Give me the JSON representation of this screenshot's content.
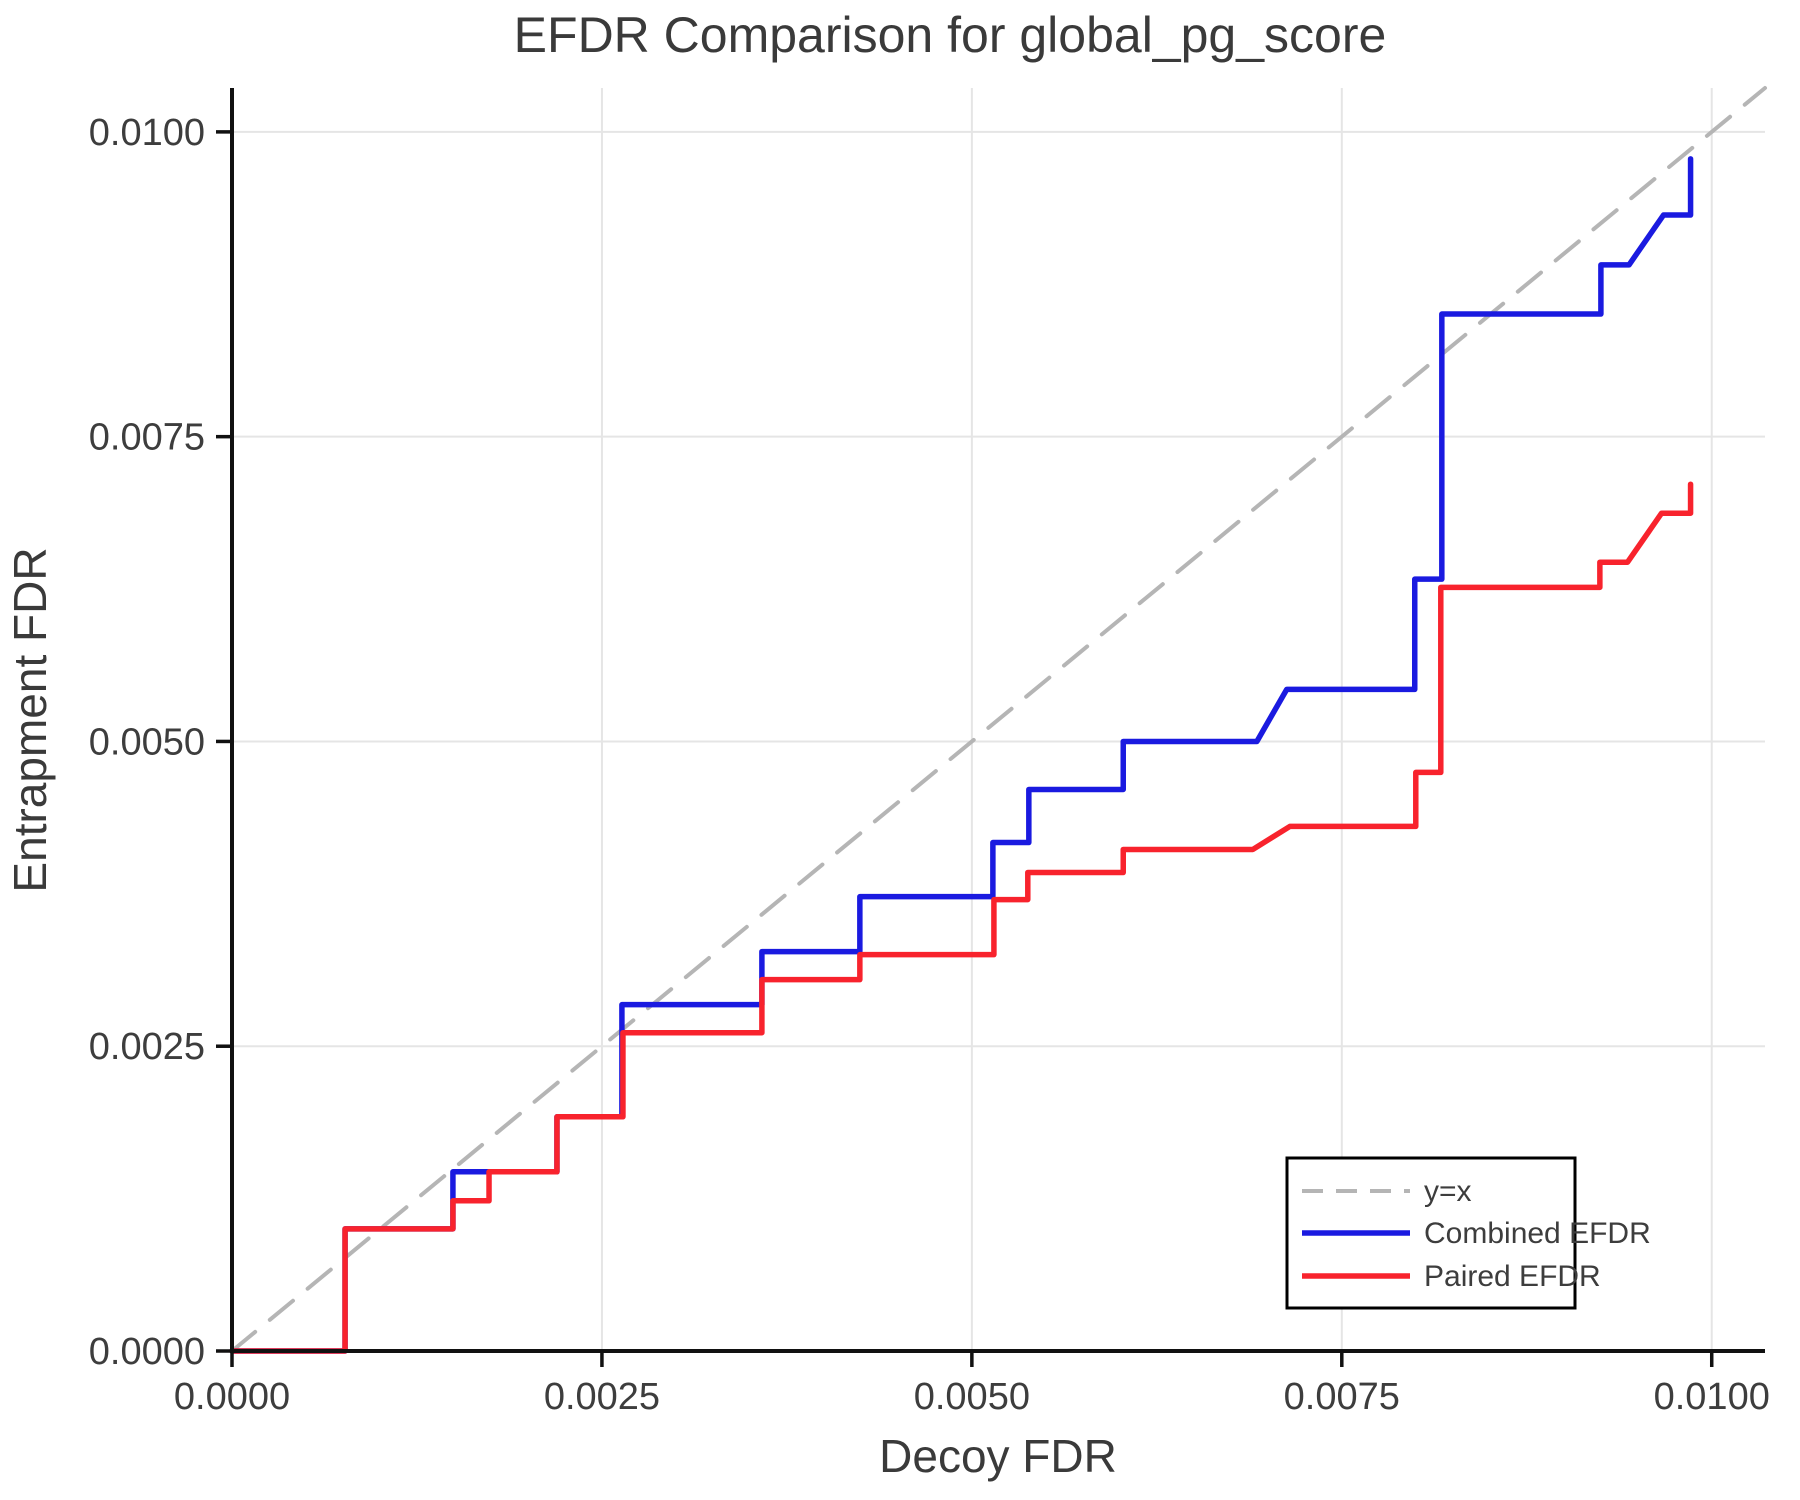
{
  "chart_data": {
    "type": "line",
    "title": "EFDR Comparison for global_pg_score",
    "xlabel": "Decoy FDR",
    "ylabel": "Entrapment FDR",
    "xlim": [
      0,
      0.01036
    ],
    "ylim": [
      0,
      0.01036
    ],
    "grid": true,
    "background": "#ffffff",
    "axis_color": "#111111",
    "grid_color": "#e5e5e5",
    "text_color": "#3d3d3d",
    "xticks": {
      "values": [
        0,
        0.0025,
        0.005,
        0.0075,
        0.01
      ],
      "labels": [
        "0.0000",
        "0.0025",
        "0.0050",
        "0.0075",
        "0.0100"
      ]
    },
    "yticks": {
      "values": [
        0,
        0.0025,
        0.005,
        0.0075,
        0.01
      ],
      "labels": [
        "0.0000",
        "0.0025",
        "0.0050",
        "0.0075",
        "0.0100"
      ]
    },
    "legend": {
      "position": "bottom-right",
      "entries": [
        {
          "label": "y=x",
          "color": "#b5b5b5",
          "dashed": true
        },
        {
          "label": "Combined EFDR",
          "color": "#1a1ae0",
          "dashed": false
        },
        {
          "label": "Paired EFDR",
          "color": "#f8232d",
          "dashed": false
        }
      ]
    },
    "series": [
      {
        "name": "y=x",
        "color": "#b5b5b5",
        "dashed": true,
        "width": 4,
        "points": [
          [
            0,
            0
          ],
          [
            0.01036,
            0.01036
          ]
        ]
      },
      {
        "name": "Combined EFDR",
        "color": "#1a1ae0",
        "dashed": false,
        "width": 5.5,
        "points": [
          [
            0,
            0
          ],
          [
            0.000764,
            0
          ],
          [
            0.000764,
            0.001002
          ],
          [
            0.001493,
            0.001002
          ],
          [
            0.001493,
            0.00147
          ],
          [
            0.002196,
            0.00147
          ],
          [
            0.002196,
            0.001921
          ],
          [
            0.002635,
            0.001921
          ],
          [
            0.002635,
            0.002841
          ],
          [
            0.003581,
            0.002841
          ],
          [
            0.003581,
            0.003276
          ],
          [
            0.004243,
            0.003276
          ],
          [
            0.004243,
            0.003727
          ],
          [
            0.005142,
            0.003727
          ],
          [
            0.005142,
            0.004171
          ],
          [
            0.005385,
            0.004171
          ],
          [
            0.005385,
            0.004606
          ],
          [
            0.006023,
            0.004606
          ],
          [
            0.006023,
            0.005
          ],
          [
            0.006926,
            0.005
          ],
          [
            0.007128,
            0.005427
          ],
          [
            0.007993,
            0.005427
          ],
          [
            0.007993,
            0.006331
          ],
          [
            0.008176,
            0.006331
          ],
          [
            0.008176,
            0.008506
          ],
          [
            0.009251,
            0.008506
          ],
          [
            0.009251,
            0.008909
          ],
          [
            0.009441,
            0.008909
          ],
          [
            0.009674,
            0.009318
          ],
          [
            0.009857,
            0.009318
          ],
          [
            0.009857,
            0.009779
          ]
        ]
      },
      {
        "name": "Paired EFDR",
        "color": "#f8232d",
        "dashed": false,
        "width": 5.5,
        "points": [
          [
            0,
            0
          ],
          [
            0.000764,
            0
          ],
          [
            0.000764,
            0.001002
          ],
          [
            0.001493,
            0.001002
          ],
          [
            0.001493,
            0.001232
          ],
          [
            0.001737,
            0.001232
          ],
          [
            0.001737,
            0.00147
          ],
          [
            0.002196,
            0.00147
          ],
          [
            0.002196,
            0.001921
          ],
          [
            0.002642,
            0.001921
          ],
          [
            0.002642,
            0.002611
          ],
          [
            0.003581,
            0.002611
          ],
          [
            0.003581,
            0.003046
          ],
          [
            0.004243,
            0.003046
          ],
          [
            0.004243,
            0.003251
          ],
          [
            0.005149,
            0.003251
          ],
          [
            0.005149,
            0.003703
          ],
          [
            0.005378,
            0.003703
          ],
          [
            0.005378,
            0.003925
          ],
          [
            0.006023,
            0.003925
          ],
          [
            0.006023,
            0.004114
          ],
          [
            0.006899,
            0.004114
          ],
          [
            0.007149,
            0.004303
          ],
          [
            0.008,
            0.004303
          ],
          [
            0.008,
            0.004746
          ],
          [
            0.008169,
            0.004746
          ],
          [
            0.008169,
            0.006264
          ],
          [
            0.009244,
            0.006264
          ],
          [
            0.009244,
            0.00647
          ],
          [
            0.009431,
            0.00647
          ],
          [
            0.009661,
            0.006872
          ],
          [
            0.009857,
            0.006872
          ],
          [
            0.009857,
            0.00711
          ]
        ]
      }
    ]
  }
}
